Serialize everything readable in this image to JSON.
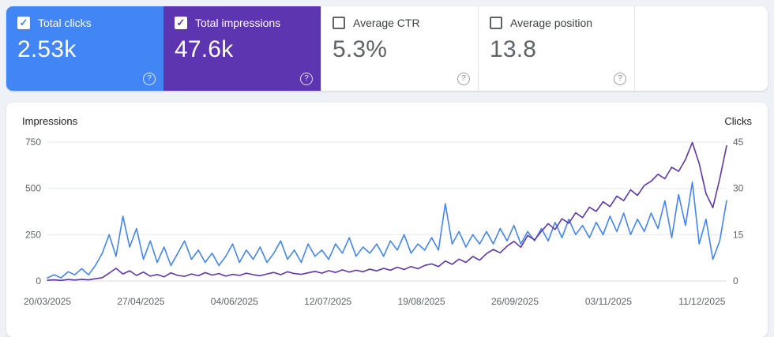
{
  "icons": {
    "help_glyph": "?",
    "check_glyph": "✓"
  },
  "colors": {
    "clicks_blue": "#4285f4",
    "impressions_purple": "#5e35b1",
    "page_bg": "#eef1f6",
    "grid_line": "#e6e8ec",
    "tick_text": "#5f6368"
  },
  "cards": [
    {
      "label": "Total clicks",
      "value": "2.53k",
      "checked": true,
      "color": "#4285f4"
    },
    {
      "label": "Total impressions",
      "value": "47.6k",
      "checked": true,
      "color": "#5e35b1"
    },
    {
      "label": "Average CTR",
      "value": "5.3%",
      "checked": false
    },
    {
      "label": "Average position",
      "value": "13.8",
      "checked": false
    }
  ],
  "chart_data": {
    "type": "line",
    "left_axis": {
      "label": "Impressions",
      "ticks": [
        0,
        250,
        500,
        750
      ],
      "max": 750
    },
    "right_axis": {
      "label": "Clicks",
      "ticks": [
        0,
        15,
        30,
        45
      ],
      "max": 45
    },
    "x_labels": [
      "20/03/2025",
      "27/04/2025",
      "04/06/2025",
      "12/07/2025",
      "19/08/2025",
      "26/09/2025",
      "03/11/2025",
      "11/12/2025"
    ],
    "x_label_interval_days": 38,
    "total_days": 276,
    "grid": true,
    "series": [
      {
        "name": "Total clicks",
        "axis": "right",
        "color": "#4285f4",
        "values": [
          1,
          2,
          1,
          3,
          2,
          4,
          2,
          5,
          9,
          15,
          8,
          21,
          11,
          17,
          7,
          13,
          6,
          11,
          5,
          9,
          13,
          7,
          10,
          6,
          9,
          5,
          8,
          12,
          6,
          10,
          7,
          11,
          6,
          9,
          13,
          7,
          10,
          6,
          12,
          8,
          10,
          7,
          12,
          9,
          14,
          8,
          11,
          9,
          12,
          8,
          13,
          10,
          15,
          9,
          12,
          10,
          14,
          10,
          25,
          12,
          16,
          11,
          15,
          12,
          16,
          12,
          17,
          13,
          18,
          12,
          16,
          13,
          17,
          13,
          19,
          14,
          20,
          15,
          18,
          14,
          19,
          15,
          21,
          16,
          22,
          15,
          20,
          16,
          22,
          17,
          26,
          14,
          28,
          18,
          32,
          12,
          20,
          7,
          13,
          26
        ]
      },
      {
        "name": "Total impressions",
        "axis": "left",
        "color": "#5e35b1",
        "values": [
          4,
          6,
          3,
          8,
          5,
          9,
          6,
          12,
          18,
          42,
          68,
          38,
          55,
          30,
          48,
          26,
          35,
          22,
          44,
          30,
          25,
          38,
          28,
          45,
          32,
          40,
          26,
          36,
          30,
          42,
          34,
          28,
          38,
          46,
          34,
          50,
          40,
          36,
          44,
          52,
          42,
          56,
          46,
          60,
          48,
          58,
          50,
          64,
          54,
          68,
          58,
          74,
          62,
          78,
          66,
          84,
          92,
          78,
          108,
          90,
          118,
          100,
          132,
          112,
          148,
          170,
          152,
          188,
          214,
          182,
          246,
          222,
          268,
          310,
          278,
          336,
          312,
          368,
          342,
          398,
          376,
          428,
          402,
          458,
          434,
          492,
          462,
          516,
          538,
          576,
          552,
          614,
          592,
          656,
          748,
          634,
          472,
          396,
          552,
          730
        ]
      }
    ]
  }
}
